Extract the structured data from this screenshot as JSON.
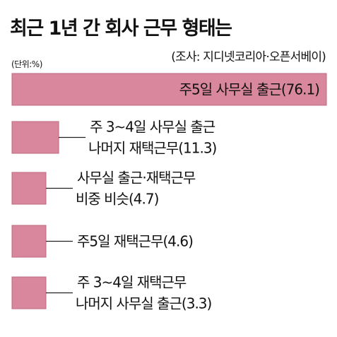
{
  "chart_data": {
    "type": "bar",
    "orientation": "horizontal",
    "title": "최근 1년 간 회사 근무 형태는",
    "source": "(조사: 지디넷코리아·오픈서베이)",
    "unit": "(단위:%)",
    "grid": false,
    "legend": "none",
    "xlim": [
      0,
      76.1
    ],
    "categories": [
      [
        "주5일 사무실 출근(76.1)"
      ],
      [
        "주 3~4일 사무실 출근",
        "나머지 재택근무(11.3)"
      ],
      [
        "사무실 출근·재택근무",
        "비중 비슷(4.7)"
      ],
      [
        "주5일 재택근무(4.6)"
      ],
      [
        "주 3~4일 재택근무",
        "나머지 사무실 출근(3.3)"
      ]
    ],
    "values": [
      76.1,
      11.3,
      4.7,
      4.6,
      3.3
    ],
    "bar_color": "#d9879d",
    "bar_border_color": "#c0687f",
    "leader_color": "#222222"
  }
}
